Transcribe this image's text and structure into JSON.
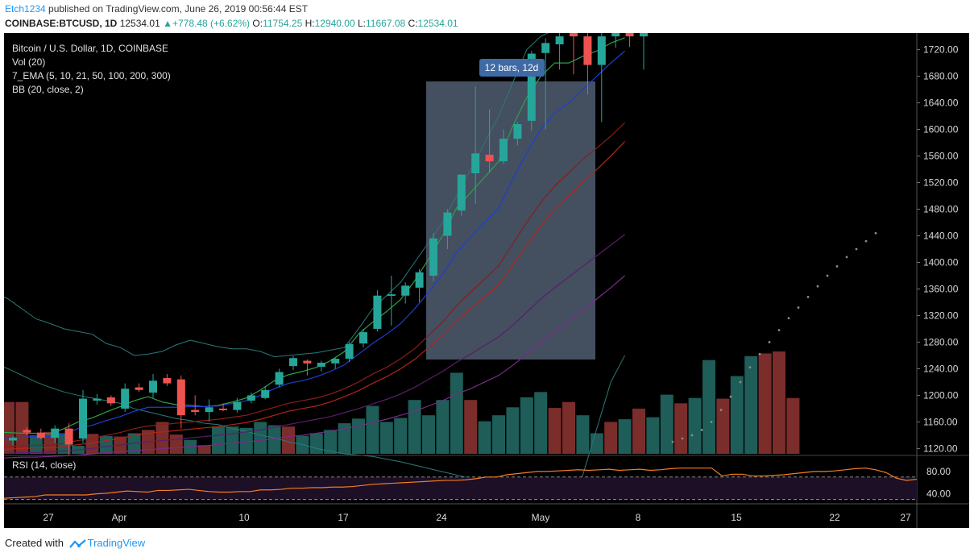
{
  "header": {
    "user": "Etch1234",
    "published_text": " published on TradingView.com, June 26, 2019 00:56:44 EST",
    "symbol": "COINBASE:BTCUSD, 1D",
    "last": "12534.01",
    "change": "+778.48 (+6.62%)",
    "o_label": "O:",
    "o_value": "11754.25",
    "h_label": "H:",
    "h_value": "12940.00",
    "l_label": "L:",
    "l_value": "11667.08",
    "c_label": "C:",
    "c_value": "12534.01"
  },
  "legend": {
    "title": "Bitcoin / U.S. Dollar, 1D, COINBASE",
    "vol": "Vol (20)",
    "ema": "7_EMA (5, 10, 21, 50, 100, 200, 300)",
    "bb": "BB (20, close, 2)",
    "rsi": "RSI (14, close)"
  },
  "range_label": "12 bars, 12d",
  "footer": {
    "created_with": "Created with",
    "brand": "TradingView"
  },
  "colors": {
    "up": "#26a69a",
    "down": "#ef5350",
    "background": "#000000",
    "range_box": "#4a5668",
    "range_label_bg": "#3f6aa6"
  },
  "chart_data": {
    "type": "candlestick",
    "price_axis": {
      "ticks": [
        "1720.00",
        "1680.00",
        "1640.00",
        "1600.00",
        "1560.00",
        "1520.00",
        "1480.00",
        "1440.00",
        "1400.00",
        "1360.00",
        "1320.00",
        "1280.00",
        "1240.00",
        "1200.00",
        "1160.00",
        "1120.00"
      ],
      "ylim": [
        1112,
        1745
      ]
    },
    "rsi_axis": {
      "ticks": [
        "80.00",
        "40.00"
      ],
      "levels": [
        70,
        30
      ],
      "ylim": [
        25,
        100
      ]
    },
    "time_axis": [
      "27",
      "Apr",
      "10",
      "17",
      "24",
      "May",
      "8",
      "15",
      "22",
      "27"
    ],
    "candles": [
      {
        "o": 1132,
        "h": 1138,
        "l": 1125,
        "c": 1136,
        "v": 1160
      },
      {
        "o": 1148,
        "h": 1152,
        "l": 1140,
        "c": 1144,
        "v": 1190
      },
      {
        "o": 1144,
        "h": 1150,
        "l": 1134,
        "c": 1136,
        "v": 1190
      },
      {
        "o": 1136,
        "h": 1155,
        "l": 1128,
        "c": 1150,
        "v": 1140
      },
      {
        "o": 1150,
        "h": 1158,
        "l": 1110,
        "c": 1126,
        "v": 1145
      },
      {
        "o": 1135,
        "h": 1208,
        "l": 1128,
        "c": 1195,
        "v": 1143
      },
      {
        "o": 1192,
        "h": 1202,
        "l": 1186,
        "c": 1195,
        "v": 1124
      },
      {
        "o": 1197,
        "h": 1200,
        "l": 1184,
        "c": 1188,
        "v": 1142
      },
      {
        "o": 1180,
        "h": 1218,
        "l": 1175,
        "c": 1210,
        "v": 1139
      },
      {
        "o": 1212,
        "h": 1218,
        "l": 1205,
        "c": 1208,
        "v": 1138
      },
      {
        "o": 1204,
        "h": 1232,
        "l": 1196,
        "c": 1222,
        "v": 1143
      },
      {
        "o": 1226,
        "h": 1232,
        "l": 1214,
        "c": 1218,
        "v": 1148
      },
      {
        "o": 1224,
        "h": 1230,
        "l": 1150,
        "c": 1170,
        "v": 1160
      },
      {
        "o": 1178,
        "h": 1200,
        "l": 1170,
        "c": 1175,
        "v": 1141
      },
      {
        "o": 1175,
        "h": 1194,
        "l": 1160,
        "c": 1182,
        "v": 1133
      },
      {
        "o": 1180,
        "h": 1188,
        "l": 1176,
        "c": 1178,
        "v": 1125
      },
      {
        "o": 1178,
        "h": 1196,
        "l": 1174,
        "c": 1190,
        "v": 1153
      },
      {
        "o": 1192,
        "h": 1204,
        "l": 1188,
        "c": 1200,
        "v": 1153
      },
      {
        "o": 1196,
        "h": 1214,
        "l": 1194,
        "c": 1208,
        "v": 1151
      },
      {
        "o": 1216,
        "h": 1240,
        "l": 1212,
        "c": 1235,
        "v": 1160
      },
      {
        "o": 1244,
        "h": 1259,
        "l": 1238,
        "c": 1256,
        "v": 1155
      },
      {
        "o": 1252,
        "h": 1254,
        "l": 1230,
        "c": 1248,
        "v": 1153
      },
      {
        "o": 1243,
        "h": 1252,
        "l": 1236,
        "c": 1249,
        "v": 1139
      },
      {
        "o": 1248,
        "h": 1256,
        "l": 1240,
        "c": 1255,
        "v": 1143
      },
      {
        "o": 1255,
        "h": 1280,
        "l": 1250,
        "c": 1277,
        "v": 1148
      },
      {
        "o": 1278,
        "h": 1300,
        "l": 1272,
        "c": 1295,
        "v": 1158
      },
      {
        "o": 1300,
        "h": 1358,
        "l": 1296,
        "c": 1350,
        "v": 1165
      },
      {
        "o": 1350,
        "h": 1380,
        "l": 1305,
        "c": 1352,
        "v": 1184
      },
      {
        "o": 1350,
        "h": 1370,
        "l": 1338,
        "c": 1365,
        "v": 1160
      },
      {
        "o": 1362,
        "h": 1390,
        "l": 1340,
        "c": 1385,
        "v": 1166
      },
      {
        "o": 1380,
        "h": 1444,
        "l": 1372,
        "c": 1436,
        "v": 1193
      },
      {
        "o": 1440,
        "h": 1480,
        "l": 1420,
        "c": 1475,
        "v": 1170
      },
      {
        "o": 1478,
        "h": 1530,
        "l": 1470,
        "c": 1532,
        "v": 1193
      },
      {
        "o": 1534,
        "h": 1665,
        "l": 1488,
        "c": 1564,
        "v": 1234
      },
      {
        "o": 1562,
        "h": 1630,
        "l": 1535,
        "c": 1552,
        "v": 1193
      },
      {
        "o": 1552,
        "h": 1600,
        "l": 1548,
        "c": 1586,
        "v": 1161
      },
      {
        "o": 1586,
        "h": 1611,
        "l": 1576,
        "c": 1608,
        "v": 1170
      },
      {
        "o": 1613,
        "h": 1718,
        "l": 1598,
        "c": 1714,
        "v": 1182
      },
      {
        "o": 1715,
        "h": 1737,
        "l": 1600,
        "c": 1730,
        "v": 1197
      },
      {
        "o": 1728,
        "h": 1760,
        "l": 1690,
        "c": 1740,
        "v": 1205
      },
      {
        "o": 1745,
        "h": 1760,
        "l": 1683,
        "c": 1740,
        "v": 1181
      },
      {
        "o": 1740,
        "h": 1760,
        "l": 1653,
        "c": 1697,
        "v": 1190
      },
      {
        "o": 1697,
        "h": 1760,
        "l": 1611,
        "c": 1740,
        "v": 1170
      },
      {
        "o": 1740,
        "h": 1760,
        "l": 1723,
        "c": 1745,
        "v": 1143
      },
      {
        "o": 1745,
        "h": 1760,
        "l": 1724,
        "c": 1740,
        "v": 1160
      },
      {
        "o": 1740,
        "h": 1760,
        "l": 1690,
        "c": 1745,
        "v": 1164
      }
    ],
    "volume_extra": [
      1180,
      1167,
      1201,
      1188,
      1196,
      1253,
      1195,
      1229,
      1259,
      1263,
      1266,
      1196
    ],
    "overlays": {
      "bb_upper": [
        1355,
        1345,
        1330,
        1315,
        1308,
        1300,
        1296,
        1292,
        1278,
        1272,
        1260,
        1262,
        1266,
        1276,
        1283,
        1278,
        1273,
        1270,
        1270,
        1266,
        1258,
        1260,
        1262,
        1264,
        1268,
        1272,
        1300,
        1330,
        1350,
        1370,
        1400,
        1430,
        1460,
        1500,
        1540,
        1580,
        1620,
        1670,
        1720,
        1740,
        1750,
        1760,
        1770,
        1780,
        1790,
        1800
      ],
      "bb_lower": [
        1248,
        1240,
        1230,
        1220,
        1212,
        1205,
        1200,
        1196,
        1192,
        1188,
        1180,
        1175,
        1170,
        1165,
        1162,
        1158,
        1156,
        1150,
        1146,
        1140,
        1136,
        1130,
        1126,
        1120,
        1116,
        1112,
        1110,
        1108,
        1104,
        1100,
        1095,
        1090,
        1085,
        1080,
        1075,
        1070,
        1065,
        1060,
        1055,
        1050,
        1048,
        1050,
        1080,
        1150,
        1220,
        1260
      ],
      "ema_lines": [
        {
          "color": "#2ea04a",
          "values": [
            1145,
            1144,
            1143,
            1143,
            1142,
            1150,
            1160,
            1166,
            1175,
            1183,
            1192,
            1198,
            1190,
            1186,
            1185,
            1183,
            1185,
            1190,
            1196,
            1208,
            1222,
            1231,
            1236,
            1242,
            1252,
            1266,
            1292,
            1310,
            1326,
            1344,
            1372,
            1405,
            1440,
            1482,
            1505,
            1528,
            1552,
            1605,
            1648,
            1680,
            1700,
            1700,
            1710,
            1718,
            1730,
            1738
          ]
        },
        {
          "color": "#1e3fd0",
          "values": [
            1135,
            1136,
            1137,
            1138,
            1138,
            1142,
            1150,
            1155,
            1162,
            1168,
            1176,
            1182,
            1182,
            1182,
            1183,
            1183,
            1184,
            1188,
            1192,
            1200,
            1210,
            1218,
            1222,
            1228,
            1236,
            1246,
            1262,
            1278,
            1292,
            1308,
            1330,
            1355,
            1382,
            1415,
            1438,
            1460,
            1482,
            1525,
            1565,
            1600,
            1625,
            1640,
            1660,
            1680,
            1700,
            1718
          ]
        },
        {
          "color": "#8a1e18",
          "values": [
            1122,
            1123,
            1124,
            1125,
            1125,
            1128,
            1132,
            1135,
            1140,
            1144,
            1150,
            1154,
            1156,
            1158,
            1160,
            1162,
            1164,
            1167,
            1170,
            1176,
            1182,
            1188,
            1192,
            1196,
            1202,
            1210,
            1220,
            1232,
            1242,
            1255,
            1270,
            1290,
            1310,
            1335,
            1355,
            1375,
            1395,
            1428,
            1460,
            1490,
            1515,
            1535,
            1555,
            1572,
            1590,
            1610
          ]
        },
        {
          "color": "#b32418",
          "values": [
            1118,
            1119,
            1120,
            1121,
            1121,
            1123,
            1126,
            1128,
            1132,
            1135,
            1140,
            1143,
            1145,
            1147,
            1149,
            1151,
            1153,
            1156,
            1159,
            1164,
            1170,
            1176,
            1180,
            1184,
            1190,
            1198,
            1207,
            1218,
            1228,
            1240,
            1254,
            1272,
            1290,
            1312,
            1330,
            1348,
            1366,
            1396,
            1426,
            1455,
            1480,
            1500,
            1520,
            1540,
            1560,
            1582
          ]
        },
        {
          "color": "#5a1e6a",
          "values": [
            1112,
            1113,
            1114,
            1114,
            1115,
            1116,
            1118,
            1120,
            1123,
            1125,
            1128,
            1130,
            1132,
            1134,
            1136,
            1138,
            1140,
            1142,
            1145,
            1148,
            1152,
            1156,
            1160,
            1164,
            1168,
            1174,
            1180,
            1187,
            1194,
            1202,
            1212,
            1224,
            1236,
            1250,
            1262,
            1275,
            1288,
            1305,
            1325,
            1345,
            1362,
            1378,
            1394,
            1410,
            1426,
            1442
          ]
        },
        {
          "color": "#7a2a8a",
          "values": [
            1105,
            1106,
            1107,
            1107,
            1108,
            1109,
            1110,
            1112,
            1114,
            1115,
            1117,
            1118,
            1120,
            1121,
            1123,
            1124,
            1126,
            1128,
            1130,
            1132,
            1135,
            1138,
            1140,
            1143,
            1146,
            1150,
            1154,
            1159,
            1164,
            1170,
            1176,
            1184,
            1192,
            1202,
            1210,
            1220,
            1230,
            1245,
            1262,
            1280,
            1296,
            1312,
            1328,
            1345,
            1362,
            1380
          ]
        }
      ],
      "sar_dots": [
        1130,
        1135,
        1140,
        1148,
        1160,
        1178,
        1198,
        1220,
        1242,
        1262,
        1280,
        1298,
        1316,
        1332,
        1348,
        1364,
        1380,
        1394,
        1408,
        1420,
        1432,
        1444
      ]
    },
    "rsi": [
      32,
      33,
      34,
      35,
      38,
      38,
      38,
      38,
      38,
      40,
      41,
      43,
      45,
      44,
      43,
      46,
      46,
      47,
      48,
      46,
      44,
      43,
      43,
      44,
      44,
      47,
      47,
      48,
      50,
      50,
      51,
      51,
      52,
      52,
      53,
      55,
      57,
      58,
      59,
      60,
      61,
      62,
      63,
      64,
      64,
      65,
      67,
      70,
      70,
      74,
      76,
      78,
      80,
      80,
      81,
      82,
      83,
      82,
      83,
      84,
      82,
      83,
      84,
      82,
      83,
      85,
      86,
      86,
      86,
      86,
      72,
      75,
      75,
      72,
      72,
      73,
      74,
      76,
      78,
      80,
      80,
      81,
      83,
      85,
      86,
      83,
      78,
      68,
      64,
      66
    ]
  }
}
